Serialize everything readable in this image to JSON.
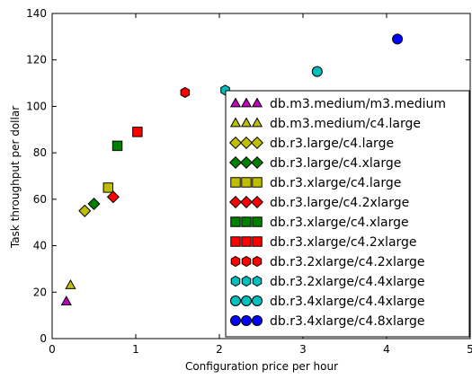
{
  "chart_data": {
    "type": "scatter",
    "title": "",
    "xlabel": "Configuration price per hour",
    "ylabel": "Task throughput per dollar",
    "xlim": [
      0,
      5
    ],
    "ylim": [
      0,
      140
    ],
    "x_ticks": [
      "0",
      "1",
      "2",
      "3",
      "4",
      "5"
    ],
    "y_ticks": [
      "0",
      "20",
      "40",
      "60",
      "80",
      "100",
      "120",
      "140"
    ],
    "grid": false,
    "legend_position": "lower-right",
    "series": [
      {
        "name": "db.m3.medium/m3.medium",
        "marker": "triangle",
        "color": "#bf00bf",
        "x": [
          0.17
        ],
        "y": [
          16
        ]
      },
      {
        "name": "db.m3.medium/c4.large",
        "marker": "triangle",
        "color": "#bfbf00",
        "x": [
          0.22
        ],
        "y": [
          23
        ]
      },
      {
        "name": "db.r3.large/c4.large",
        "marker": "diamond",
        "color": "#bfbf00",
        "x": [
          0.39
        ],
        "y": [
          55
        ]
      },
      {
        "name": "db.r3.large/c4.xlarge",
        "marker": "diamond",
        "color": "#008000",
        "x": [
          0.5
        ],
        "y": [
          58
        ]
      },
      {
        "name": "db.r3.xlarge/c4.large",
        "marker": "square",
        "color": "#bfbf00",
        "x": [
          0.67
        ],
        "y": [
          65
        ]
      },
      {
        "name": "db.r3.large/c4.2xlarge",
        "marker": "diamond",
        "color": "#ff0000",
        "x": [
          0.73
        ],
        "y": [
          61
        ]
      },
      {
        "name": "db.r3.xlarge/c4.xlarge",
        "marker": "square",
        "color": "#008000",
        "x": [
          0.78
        ],
        "y": [
          83
        ]
      },
      {
        "name": "db.r3.xlarge/c4.2xlarge",
        "marker": "square",
        "color": "#ff0000",
        "x": [
          1.02
        ],
        "y": [
          89
        ]
      },
      {
        "name": "db.r3.2xlarge/c4.2xlarge",
        "marker": "hexagon",
        "color": "#ff0000",
        "x": [
          1.59
        ],
        "y": [
          106
        ]
      },
      {
        "name": "db.r3.2xlarge/c4.4xlarge",
        "marker": "hexagon",
        "color": "#00bfbf",
        "x": [
          2.07
        ],
        "y": [
          107
        ]
      },
      {
        "name": "db.r3.4xlarge/c4.4xlarge",
        "marker": "circle",
        "color": "#00bfbf",
        "x": [
          3.17
        ],
        "y": [
          115
        ]
      },
      {
        "name": "db.r3.4xlarge/c4.8xlarge",
        "marker": "circle",
        "color": "#0000ff",
        "x": [
          4.13
        ],
        "y": [
          129
        ]
      }
    ]
  }
}
